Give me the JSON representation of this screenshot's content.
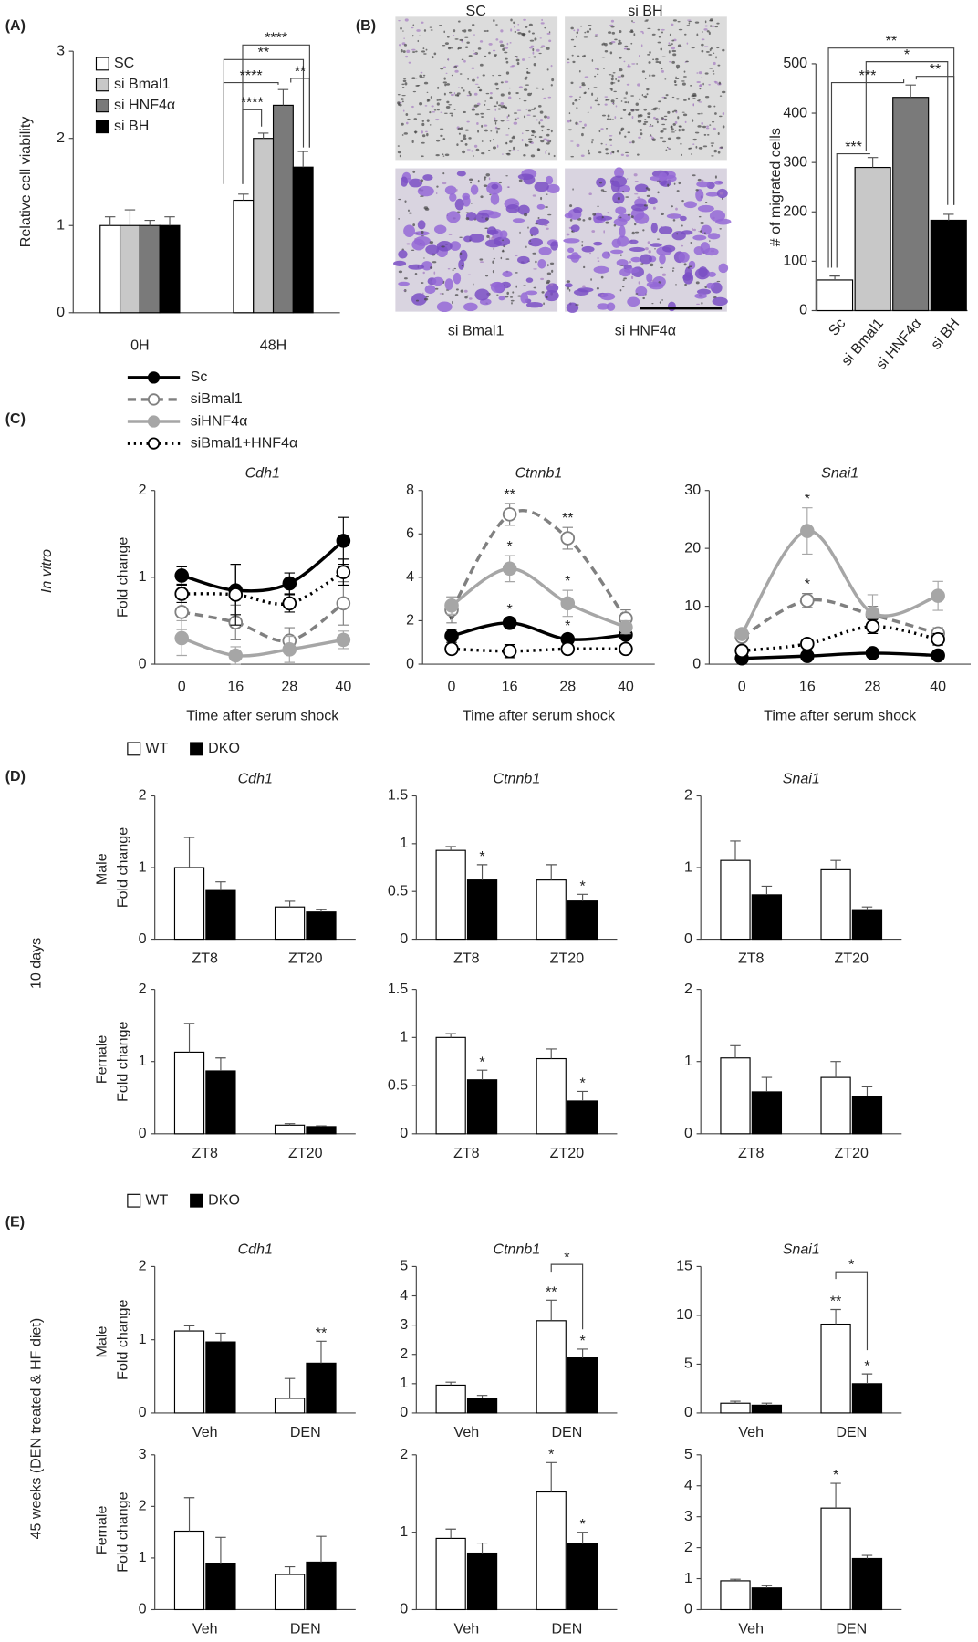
{
  "figure": {
    "panels": [
      "(A)",
      "(B)",
      "(C)",
      "(D)",
      "(E)"
    ],
    "rows": [
      "In vitro",
      "10 days",
      "Male",
      "Female",
      "45 weeks (DEN treated & HF diet)",
      "Male",
      "Female"
    ]
  },
  "chart_data": [
    {
      "type": "bar",
      "ylabel": "Relative cell viability",
      "categories": [
        "0H",
        "48H"
      ],
      "series": [
        {
          "name": "SC",
          "color": "#ffffff",
          "values": [
            1.0,
            1.29
          ],
          "errors": [
            0.1,
            0.07
          ]
        },
        {
          "name": "si Bmal1",
          "color": "#c8c8c8",
          "values": [
            1.0,
            2.0
          ],
          "errors": [
            0.18,
            0.06
          ]
        },
        {
          "name": "si HNF4α",
          "color": "#7a7a7a",
          "values": [
            1.0,
            2.38
          ],
          "errors": [
            0.06,
            0.18
          ]
        },
        {
          "name": "si BH",
          "color": "#000000",
          "values": [
            1.0,
            1.67
          ],
          "errors": [
            0.1,
            0.18
          ]
        }
      ],
      "ylim": [
        0,
        3
      ],
      "yticks": [
        0,
        1,
        2,
        3
      ],
      "legend": "upper left",
      "brackets": [
        "****",
        "**",
        "****",
        "**",
        "****"
      ]
    },
    {
      "type": "bar",
      "ylabel": "# of migrated cells",
      "categories": [
        "Sc",
        "si Bmal1",
        "si HNF4α",
        "si BH"
      ],
      "values": [
        62,
        290,
        432,
        183
      ],
      "errors": [
        8,
        20,
        25,
        12
      ],
      "colors": [
        "#ffffff",
        "#c8c8c8",
        "#7a7a7a",
        "#000000"
      ],
      "ylim": [
        0,
        500
      ],
      "yticks": [
        0,
        100,
        200,
        300,
        400,
        500
      ],
      "brackets": [
        "**",
        "*",
        "**",
        "***",
        "***"
      ],
      "image_labels": [
        "SC",
        "si BH",
        "si Bmal1",
        "si HNF4α"
      ]
    },
    {
      "type": "line",
      "title": "Cdh1",
      "ylabel": "Fold change",
      "xlabel": "Time after serum shock",
      "categories": [
        "0",
        "16",
        "28",
        "40"
      ],
      "ylim": [
        0,
        2
      ],
      "yticks": [
        0,
        1,
        2
      ],
      "legend": "above",
      "series": [
        {
          "name": "Sc",
          "color": "#000000",
          "line_style": "solid",
          "marker": "filled",
          "values": [
            1.02,
            0.85,
            0.93,
            1.42
          ],
          "errors": [
            0.1,
            0.28,
            0.12,
            0.27
          ]
        },
        {
          "name": "siBmal1",
          "color": "#808080",
          "line_style": "dashed",
          "marker": "open",
          "values": [
            0.6,
            0.48,
            0.27,
            0.7
          ],
          "errors": [
            0.2,
            0.2,
            0.15,
            0.25
          ]
        },
        {
          "name": "siHNF4α",
          "color": "#a6a6a6",
          "line_style": "solid",
          "marker": "filled",
          "values": [
            0.3,
            0.1,
            0.17,
            0.28
          ],
          "errors": [
            0.2,
            0.1,
            0.15,
            0.1
          ]
        },
        {
          "name": "siBmal1+HNF4α",
          "color": "#000000",
          "line_style": "dotted",
          "marker": "open",
          "values": [
            0.81,
            0.8,
            0.7,
            1.06
          ],
          "errors": [
            0.1,
            0.35,
            0.1,
            0.15
          ]
        }
      ]
    },
    {
      "type": "line",
      "title": "Ctnnb1",
      "xlabel": "Time after serum shock",
      "categories": [
        "0",
        "16",
        "28",
        "40"
      ],
      "ylim": [
        0,
        8
      ],
      "yticks": [
        0,
        2,
        4,
        6,
        8
      ],
      "series": [
        {
          "color": "#000000",
          "line_style": "solid",
          "marker": "filled",
          "values": [
            1.3,
            1.9,
            1.15,
            1.35
          ],
          "errors": [
            0.3,
            0.2,
            0.2,
            0.2
          ],
          "stars": [
            "*",
            "*",
            "*",
            null
          ]
        },
        {
          "color": "#808080",
          "line_style": "dashed",
          "marker": "open",
          "values": [
            2.5,
            6.9,
            5.8,
            2.1
          ],
          "errors": [
            0.6,
            0.5,
            0.5,
            0.4
          ],
          "stars": [
            null,
            "**",
            "**",
            null
          ]
        },
        {
          "color": "#a6a6a6",
          "line_style": "solid",
          "marker": "filled",
          "values": [
            2.7,
            4.4,
            2.8,
            1.7
          ],
          "errors": [
            0.4,
            0.6,
            0.6,
            0.3
          ],
          "stars": [
            null,
            "*",
            "*",
            null
          ]
        },
        {
          "color": "#000000",
          "line_style": "dotted",
          "marker": "open",
          "values": [
            0.7,
            0.6,
            0.7,
            0.7
          ],
          "errors": [
            0.2,
            0.3,
            0.2,
            0.2
          ]
        }
      ]
    },
    {
      "type": "line",
      "title": "Snai1",
      "xlabel": "Time after serum shock",
      "categories": [
        "0",
        "16",
        "28",
        "40"
      ],
      "ylim": [
        0,
        30
      ],
      "yticks": [
        0,
        10,
        20,
        30
      ],
      "series": [
        {
          "color": "#000000",
          "line_style": "solid",
          "marker": "filled",
          "values": [
            1,
            1.4,
            1.9,
            1.5
          ],
          "errors": [
            0.3,
            0.3,
            0.3,
            0.3
          ]
        },
        {
          "color": "#808080",
          "line_style": "dashed",
          "marker": "open",
          "values": [
            4.7,
            11,
            8.5,
            5.3
          ],
          "errors": [
            0.5,
            1.2,
            1.5,
            1
          ],
          "stars": [
            null,
            "*",
            null,
            null
          ]
        },
        {
          "color": "#a6a6a6",
          "line_style": "solid",
          "marker": "filled",
          "values": [
            5.2,
            23,
            8.8,
            11.8
          ],
          "errors": [
            0.6,
            4,
            3.2,
            2.5
          ],
          "stars": [
            null,
            "*",
            null,
            null
          ]
        },
        {
          "color": "#000000",
          "line_style": "dotted",
          "marker": "open",
          "values": [
            2.3,
            3.5,
            6.5,
            4.3
          ],
          "errors": [
            0.5,
            0.5,
            1.2,
            1
          ]
        }
      ]
    },
    {
      "type": "bar",
      "title": "Cdh1",
      "ylabel": "Fold change",
      "categories": [
        "ZT8",
        "ZT20"
      ],
      "ylim": [
        0,
        2
      ],
      "yticks": [
        0,
        1,
        2
      ],
      "legend": "above",
      "series": [
        {
          "name": "WT",
          "color": "#ffffff",
          "values": [
            1.0,
            0.45
          ],
          "errors": [
            0.42,
            0.08
          ]
        },
        {
          "name": "DKO",
          "color": "#000000",
          "values": [
            0.68,
            0.38
          ],
          "errors": [
            0.12,
            0.03
          ]
        }
      ]
    },
    {
      "type": "bar",
      "title": "Ctnnb1",
      "categories": [
        "ZT8",
        "ZT20"
      ],
      "ylim": [
        0,
        1.5
      ],
      "yticks": [
        0,
        0.5,
        1,
        1.5
      ],
      "series": [
        {
          "color": "#ffffff",
          "values": [
            0.93,
            0.62
          ],
          "errors": [
            0.04,
            0.16
          ]
        },
        {
          "color": "#000000",
          "values": [
            0.62,
            0.4
          ],
          "errors": [
            0.16,
            0.07
          ],
          "stars": [
            "*",
            "*"
          ]
        }
      ]
    },
    {
      "type": "bar",
      "title": "Snai1",
      "categories": [
        "ZT8",
        "ZT20"
      ],
      "ylim": [
        0,
        2
      ],
      "yticks": [
        0,
        1,
        2
      ],
      "series": [
        {
          "color": "#ffffff",
          "values": [
            1.1,
            0.97
          ],
          "errors": [
            0.27,
            0.13
          ]
        },
        {
          "color": "#000000",
          "values": [
            0.62,
            0.4
          ],
          "errors": [
            0.12,
            0.05
          ]
        }
      ]
    },
    {
      "type": "bar",
      "ylabel": "Fold change",
      "categories": [
        "ZT8",
        "ZT20"
      ],
      "ylim": [
        0,
        2
      ],
      "yticks": [
        0,
        1,
        2
      ],
      "series": [
        {
          "color": "#ffffff",
          "values": [
            1.13,
            0.12
          ],
          "errors": [
            0.4,
            0.02
          ]
        },
        {
          "color": "#000000",
          "values": [
            0.87,
            0.1
          ],
          "errors": [
            0.18,
            0.01
          ]
        }
      ]
    },
    {
      "type": "bar",
      "categories": [
        "ZT8",
        "ZT20"
      ],
      "ylim": [
        0,
        1.5
      ],
      "yticks": [
        0,
        0.5,
        1,
        1.5
      ],
      "series": [
        {
          "color": "#ffffff",
          "values": [
            1.0,
            0.78
          ],
          "errors": [
            0.04,
            0.1
          ]
        },
        {
          "color": "#000000",
          "values": [
            0.56,
            0.34
          ],
          "errors": [
            0.1,
            0.1
          ],
          "stars": [
            "*",
            "*"
          ]
        }
      ]
    },
    {
      "type": "bar",
      "categories": [
        "ZT8",
        "ZT20"
      ],
      "ylim": [
        0,
        2
      ],
      "yticks": [
        0,
        1,
        2
      ],
      "series": [
        {
          "color": "#ffffff",
          "values": [
            1.05,
            0.78
          ],
          "errors": [
            0.17,
            0.22
          ]
        },
        {
          "color": "#000000",
          "values": [
            0.58,
            0.52
          ],
          "errors": [
            0.2,
            0.13
          ]
        }
      ]
    },
    {
      "type": "bar",
      "title": "Cdh1",
      "ylabel": "Fold change",
      "categories": [
        "Veh",
        "DEN"
      ],
      "ylim": [
        0,
        2
      ],
      "yticks": [
        0,
        1,
        2
      ],
      "legend": "above",
      "series": [
        {
          "name": "WT",
          "color": "#ffffff",
          "values": [
            1.12,
            0.2
          ],
          "errors": [
            0.07,
            0.27
          ]
        },
        {
          "name": "DKO",
          "color": "#000000",
          "values": [
            0.97,
            0.68
          ],
          "errors": [
            0.12,
            0.3
          ],
          "stars": [
            null,
            "**"
          ]
        }
      ]
    },
    {
      "type": "bar",
      "title": "Ctnnb1",
      "categories": [
        "Veh",
        "DEN"
      ],
      "ylim": [
        0,
        5
      ],
      "yticks": [
        0,
        1,
        2,
        3,
        4,
        5
      ],
      "brackets": [
        "*"
      ],
      "series": [
        {
          "color": "#ffffff",
          "values": [
            0.95,
            3.15
          ],
          "errors": [
            0.1,
            0.7
          ],
          "stars": [
            null,
            "**"
          ]
        },
        {
          "color": "#000000",
          "values": [
            0.5,
            1.88
          ],
          "errors": [
            0.1,
            0.3
          ],
          "stars": [
            null,
            "*"
          ]
        }
      ]
    },
    {
      "type": "bar",
      "title": "Snai1",
      "categories": [
        "Veh",
        "DEN"
      ],
      "ylim": [
        0,
        15
      ],
      "yticks": [
        0,
        5,
        10,
        15
      ],
      "brackets": [
        "*"
      ],
      "series": [
        {
          "color": "#ffffff",
          "values": [
            1,
            9.1
          ],
          "errors": [
            0.2,
            1.5
          ],
          "stars": [
            null,
            "**"
          ]
        },
        {
          "color": "#000000",
          "values": [
            0.8,
            3.0
          ],
          "errors": [
            0.2,
            1
          ],
          "stars": [
            null,
            "*"
          ]
        }
      ]
    },
    {
      "type": "bar",
      "ylabel": "Fold change",
      "categories": [
        "Veh",
        "DEN"
      ],
      "ylim": [
        0,
        3
      ],
      "yticks": [
        0,
        1,
        2,
        3
      ],
      "series": [
        {
          "color": "#ffffff",
          "values": [
            1.52,
            0.68
          ],
          "errors": [
            0.65,
            0.15
          ]
        },
        {
          "color": "#000000",
          "values": [
            0.9,
            0.92
          ],
          "errors": [
            0.5,
            0.5
          ]
        }
      ]
    },
    {
      "type": "bar",
      "categories": [
        "Veh",
        "DEN"
      ],
      "ylim": [
        0,
        2
      ],
      "yticks": [
        0,
        1,
        2
      ],
      "series": [
        {
          "color": "#ffffff",
          "values": [
            0.92,
            1.52
          ],
          "errors": [
            0.12,
            0.38
          ],
          "stars": [
            null,
            "*"
          ]
        },
        {
          "color": "#000000",
          "values": [
            0.73,
            0.85
          ],
          "errors": [
            0.13,
            0.15
          ],
          "stars": [
            null,
            "*"
          ]
        }
      ]
    },
    {
      "type": "bar",
      "categories": [
        "Veh",
        "DEN"
      ],
      "ylim": [
        0,
        5
      ],
      "yticks": [
        0,
        1,
        2,
        3,
        4,
        5
      ],
      "series": [
        {
          "color": "#ffffff",
          "values": [
            0.93,
            3.28
          ],
          "errors": [
            0.05,
            0.8
          ],
          "stars": [
            null,
            "*"
          ]
        },
        {
          "color": "#000000",
          "values": [
            0.7,
            1.65
          ],
          "errors": [
            0.07,
            0.1
          ]
        }
      ]
    }
  ]
}
